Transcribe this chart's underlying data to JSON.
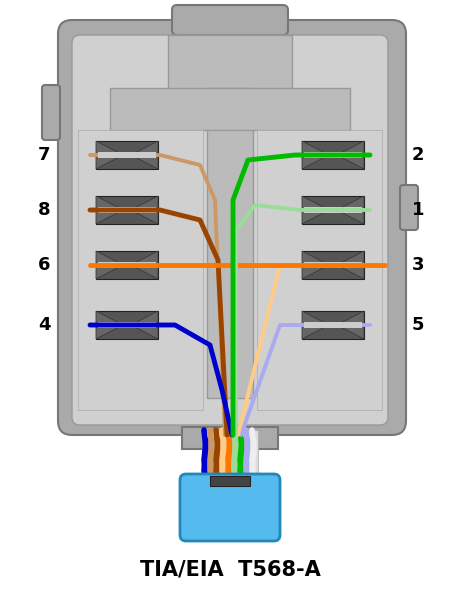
{
  "title": "TIA/EIA  T568-A",
  "bg": "#ffffff",
  "body_outer": "#aaaaaa",
  "body_inner": "#d0d0d0",
  "body_mid": "#bbbbbb",
  "idc_dark": "#555555",
  "idc_slot": "#888888",
  "jacket_color": "#55bbee",
  "jacket_edge": "#2288bb",
  "cable_clip": "#444444",
  "green": "#00bb00",
  "green_w": "#99dd99",
  "orange": "#ff7700",
  "orange_w": "#ffcc88",
  "blue": "#0000cc",
  "blue_w": "#aaaaee",
  "brown": "#994400",
  "brown_w": "#cc9966",
  "white_w": "#eeeeee",
  "pin_left": [
    [
      "7",
      170
    ],
    [
      "8",
      230
    ],
    [
      "6",
      295
    ],
    [
      "4",
      355
    ]
  ],
  "pin_right": [
    [
      "2",
      170
    ],
    [
      "1",
      230
    ],
    [
      "3",
      295
    ],
    [
      "5",
      355
    ]
  ]
}
